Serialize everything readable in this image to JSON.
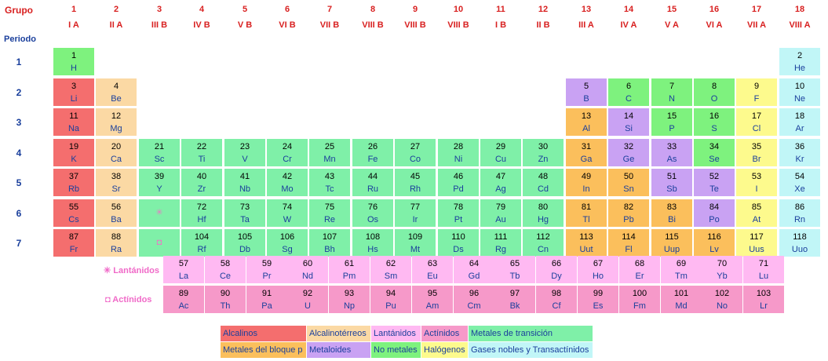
{
  "header": {
    "group_label": "Grupo",
    "period_label": "Periodo"
  },
  "groups": [
    {
      "num": "1",
      "roman": "I A"
    },
    {
      "num": "2",
      "roman": "II A"
    },
    {
      "num": "3",
      "roman": "III B"
    },
    {
      "num": "4",
      "roman": "IV B"
    },
    {
      "num": "5",
      "roman": "V B"
    },
    {
      "num": "6",
      "roman": "VI B"
    },
    {
      "num": "7",
      "roman": "VII B"
    },
    {
      "num": "8",
      "roman": "VIII B"
    },
    {
      "num": "9",
      "roman": "VIII B"
    },
    {
      "num": "10",
      "roman": "VIII B"
    },
    {
      "num": "11",
      "roman": "I B"
    },
    {
      "num": "12",
      "roman": "II B"
    },
    {
      "num": "13",
      "roman": "III A"
    },
    {
      "num": "14",
      "roman": "IV A"
    },
    {
      "num": "15",
      "roman": "V A"
    },
    {
      "num": "16",
      "roman": "VI A"
    },
    {
      "num": "17",
      "roman": "VII A"
    },
    {
      "num": "18",
      "roman": "VIII A"
    }
  ],
  "periods": [
    "1",
    "2",
    "3",
    "4",
    "5",
    "6",
    "7"
  ],
  "colors": {
    "alcalinos": "#f46e6e",
    "alcalinoterreos": "#fbd9a4",
    "lantanidos": "#ffb9f2",
    "actinidos": "#f699c9",
    "transicion": "#7ff0a8",
    "bloque_p": "#fbbf5c",
    "metaloides": "#c9a2f3",
    "no_metales": "#7ef27e",
    "halogenos": "#fdfa8d",
    "gases_nobles": "#c1f6f7"
  },
  "elements": [
    {
      "n": "1",
      "s": "H",
      "g": 1,
      "p": 1,
      "c": "no_metales"
    },
    {
      "n": "2",
      "s": "He",
      "g": 18,
      "p": 1,
      "c": "gases_nobles"
    },
    {
      "n": "3",
      "s": "Li",
      "g": 1,
      "p": 2,
      "c": "alcalinos"
    },
    {
      "n": "4",
      "s": "Be",
      "g": 2,
      "p": 2,
      "c": "alcalinoterreos"
    },
    {
      "n": "5",
      "s": "B",
      "g": 13,
      "p": 2,
      "c": "metaloides"
    },
    {
      "n": "6",
      "s": "C",
      "g": 14,
      "p": 2,
      "c": "no_metales"
    },
    {
      "n": "7",
      "s": "N",
      "g": 15,
      "p": 2,
      "c": "no_metales"
    },
    {
      "n": "8",
      "s": "O",
      "g": 16,
      "p": 2,
      "c": "no_metales"
    },
    {
      "n": "9",
      "s": "F",
      "g": 17,
      "p": 2,
      "c": "halogenos"
    },
    {
      "n": "10",
      "s": "Ne",
      "g": 18,
      "p": 2,
      "c": "gases_nobles"
    },
    {
      "n": "11",
      "s": "Na",
      "g": 1,
      "p": 3,
      "c": "alcalinos"
    },
    {
      "n": "12",
      "s": "Mg",
      "g": 2,
      "p": 3,
      "c": "alcalinoterreos"
    },
    {
      "n": "13",
      "s": "Al",
      "g": 13,
      "p": 3,
      "c": "bloque_p"
    },
    {
      "n": "14",
      "s": "Si",
      "g": 14,
      "p": 3,
      "c": "metaloides"
    },
    {
      "n": "15",
      "s": "P",
      "g": 15,
      "p": 3,
      "c": "no_metales"
    },
    {
      "n": "16",
      "s": "S",
      "g": 16,
      "p": 3,
      "c": "no_metales"
    },
    {
      "n": "17",
      "s": "Cl",
      "g": 17,
      "p": 3,
      "c": "halogenos"
    },
    {
      "n": "18",
      "s": "Ar",
      "g": 18,
      "p": 3,
      "c": "gases_nobles"
    },
    {
      "n": "19",
      "s": "K",
      "g": 1,
      "p": 4,
      "c": "alcalinos"
    },
    {
      "n": "20",
      "s": "Ca",
      "g": 2,
      "p": 4,
      "c": "alcalinoterreos"
    },
    {
      "n": "21",
      "s": "Sc",
      "g": 3,
      "p": 4,
      "c": "transicion"
    },
    {
      "n": "22",
      "s": "Ti",
      "g": 4,
      "p": 4,
      "c": "transicion"
    },
    {
      "n": "23",
      "s": "V",
      "g": 5,
      "p": 4,
      "c": "transicion"
    },
    {
      "n": "24",
      "s": "Cr",
      "g": 6,
      "p": 4,
      "c": "transicion"
    },
    {
      "n": "25",
      "s": "Mn",
      "g": 7,
      "p": 4,
      "c": "transicion"
    },
    {
      "n": "26",
      "s": "Fe",
      "g": 8,
      "p": 4,
      "c": "transicion"
    },
    {
      "n": "27",
      "s": "Co",
      "g": 9,
      "p": 4,
      "c": "transicion"
    },
    {
      "n": "28",
      "s": "Ni",
      "g": 10,
      "p": 4,
      "c": "transicion"
    },
    {
      "n": "29",
      "s": "Cu",
      "g": 11,
      "p": 4,
      "c": "transicion"
    },
    {
      "n": "30",
      "s": "Zn",
      "g": 12,
      "p": 4,
      "c": "transicion"
    },
    {
      "n": "31",
      "s": "Ga",
      "g": 13,
      "p": 4,
      "c": "bloque_p"
    },
    {
      "n": "32",
      "s": "Ge",
      "g": 14,
      "p": 4,
      "c": "metaloides"
    },
    {
      "n": "33",
      "s": "As",
      "g": 15,
      "p": 4,
      "c": "metaloides"
    },
    {
      "n": "34",
      "s": "Se",
      "g": 16,
      "p": 4,
      "c": "no_metales"
    },
    {
      "n": "35",
      "s": "Br",
      "g": 17,
      "p": 4,
      "c": "halogenos"
    },
    {
      "n": "36",
      "s": "Kr",
      "g": 18,
      "p": 4,
      "c": "gases_nobles"
    },
    {
      "n": "37",
      "s": "Rb",
      "g": 1,
      "p": 5,
      "c": "alcalinos"
    },
    {
      "n": "38",
      "s": "Sr",
      "g": 2,
      "p": 5,
      "c": "alcalinoterreos"
    },
    {
      "n": "39",
      "s": "Y",
      "g": 3,
      "p": 5,
      "c": "transicion"
    },
    {
      "n": "40",
      "s": "Zr",
      "g": 4,
      "p": 5,
      "c": "transicion"
    },
    {
      "n": "41",
      "s": "Nb",
      "g": 5,
      "p": 5,
      "c": "transicion"
    },
    {
      "n": "42",
      "s": "Mo",
      "g": 6,
      "p": 5,
      "c": "transicion"
    },
    {
      "n": "43",
      "s": "Tc",
      "g": 7,
      "p": 5,
      "c": "transicion"
    },
    {
      "n": "44",
      "s": "Ru",
      "g": 8,
      "p": 5,
      "c": "transicion"
    },
    {
      "n": "45",
      "s": "Rh",
      "g": 9,
      "p": 5,
      "c": "transicion"
    },
    {
      "n": "46",
      "s": "Pd",
      "g": 10,
      "p": 5,
      "c": "transicion"
    },
    {
      "n": "47",
      "s": "Ag",
      "g": 11,
      "p": 5,
      "c": "transicion"
    },
    {
      "n": "48",
      "s": "Cd",
      "g": 12,
      "p": 5,
      "c": "transicion"
    },
    {
      "n": "49",
      "s": "In",
      "g": 13,
      "p": 5,
      "c": "bloque_p"
    },
    {
      "n": "50",
      "s": "Sn",
      "g": 14,
      "p": 5,
      "c": "bloque_p"
    },
    {
      "n": "51",
      "s": "Sb",
      "g": 15,
      "p": 5,
      "c": "metaloides"
    },
    {
      "n": "52",
      "s": "Te",
      "g": 16,
      "p": 5,
      "c": "metaloides"
    },
    {
      "n": "53",
      "s": "I",
      "g": 17,
      "p": 5,
      "c": "halogenos"
    },
    {
      "n": "54",
      "s": "Xe",
      "g": 18,
      "p": 5,
      "c": "gases_nobles"
    },
    {
      "n": "55",
      "s": "Cs",
      "g": 1,
      "p": 6,
      "c": "alcalinos"
    },
    {
      "n": "56",
      "s": "Ba",
      "g": 2,
      "p": 6,
      "c": "alcalinoterreos"
    },
    {
      "n": "72",
      "s": "Hf",
      "g": 4,
      "p": 6,
      "c": "transicion"
    },
    {
      "n": "73",
      "s": "Ta",
      "g": 5,
      "p": 6,
      "c": "transicion"
    },
    {
      "n": "74",
      "s": "W",
      "g": 6,
      "p": 6,
      "c": "transicion"
    },
    {
      "n": "75",
      "s": "Re",
      "g": 7,
      "p": 6,
      "c": "transicion"
    },
    {
      "n": "76",
      "s": "Os",
      "g": 8,
      "p": 6,
      "c": "transicion"
    },
    {
      "n": "77",
      "s": "Ir",
      "g": 9,
      "p": 6,
      "c": "transicion"
    },
    {
      "n": "78",
      "s": "Pt",
      "g": 10,
      "p": 6,
      "c": "transicion"
    },
    {
      "n": "79",
      "s": "Au",
      "g": 11,
      "p": 6,
      "c": "transicion"
    },
    {
      "n": "80",
      "s": "Hg",
      "g": 12,
      "p": 6,
      "c": "transicion"
    },
    {
      "n": "81",
      "s": "Tl",
      "g": 13,
      "p": 6,
      "c": "bloque_p"
    },
    {
      "n": "82",
      "s": "Pb",
      "g": 14,
      "p": 6,
      "c": "bloque_p"
    },
    {
      "n": "83",
      "s": "Bi",
      "g": 15,
      "p": 6,
      "c": "bloque_p"
    },
    {
      "n": "84",
      "s": "Po",
      "g": 16,
      "p": 6,
      "c": "metaloides"
    },
    {
      "n": "85",
      "s": "At",
      "g": 17,
      "p": 6,
      "c": "halogenos"
    },
    {
      "n": "86",
      "s": "Rn",
      "g": 18,
      "p": 6,
      "c": "gases_nobles"
    },
    {
      "n": "87",
      "s": "Fr",
      "g": 1,
      "p": 7,
      "c": "alcalinos"
    },
    {
      "n": "88",
      "s": "Ra",
      "g": 2,
      "p": 7,
      "c": "alcalinoterreos"
    },
    {
      "n": "104",
      "s": "Rf",
      "g": 4,
      "p": 7,
      "c": "transicion"
    },
    {
      "n": "105",
      "s": "Db",
      "g": 5,
      "p": 7,
      "c": "transicion"
    },
    {
      "n": "106",
      "s": "Sg",
      "g": 6,
      "p": 7,
      "c": "transicion"
    },
    {
      "n": "107",
      "s": "Bh",
      "g": 7,
      "p": 7,
      "c": "transicion"
    },
    {
      "n": "108",
      "s": "Hs",
      "g": 8,
      "p": 7,
      "c": "transicion"
    },
    {
      "n": "109",
      "s": "Mt",
      "g": 9,
      "p": 7,
      "c": "transicion"
    },
    {
      "n": "110",
      "s": "Ds",
      "g": 10,
      "p": 7,
      "c": "transicion"
    },
    {
      "n": "111",
      "s": "Rg",
      "g": 11,
      "p": 7,
      "c": "transicion"
    },
    {
      "n": "112",
      "s": "Cn",
      "g": 12,
      "p": 7,
      "c": "transicion"
    },
    {
      "n": "113",
      "s": "Uut",
      "g": 13,
      "p": 7,
      "c": "bloque_p"
    },
    {
      "n": "114",
      "s": "Fl",
      "g": 14,
      "p": 7,
      "c": "bloque_p"
    },
    {
      "n": "115",
      "s": "Uup",
      "g": 15,
      "p": 7,
      "c": "bloque_p"
    },
    {
      "n": "116",
      "s": "Lv",
      "g": 16,
      "p": 7,
      "c": "bloque_p"
    },
    {
      "n": "117",
      "s": "Uus",
      "g": 17,
      "p": 7,
      "c": "halogenos"
    },
    {
      "n": "118",
      "s": "Uuo",
      "g": 18,
      "p": 7,
      "c": "gases_nobles"
    }
  ],
  "placeholders": [
    {
      "mark": "✳",
      "g": 3,
      "p": 6,
      "c": "transicion"
    },
    {
      "mark": "◘",
      "g": 3,
      "p": 7,
      "c": "transicion"
    }
  ],
  "series": [
    {
      "label": "✳ Lantánidos",
      "c": "lantanidos",
      "elements": [
        {
          "n": "57",
          "s": "La"
        },
        {
          "n": "58",
          "s": "Ce"
        },
        {
          "n": "59",
          "s": "Pr"
        },
        {
          "n": "60",
          "s": "Nd"
        },
        {
          "n": "61",
          "s": "Pm"
        },
        {
          "n": "62",
          "s": "Sm"
        },
        {
          "n": "63",
          "s": "Eu"
        },
        {
          "n": "64",
          "s": "Gd"
        },
        {
          "n": "65",
          "s": "Tb"
        },
        {
          "n": "66",
          "s": "Dy"
        },
        {
          "n": "67",
          "s": "Ho"
        },
        {
          "n": "68",
          "s": "Er"
        },
        {
          "n": "69",
          "s": "Tm"
        },
        {
          "n": "70",
          "s": "Yb"
        },
        {
          "n": "71",
          "s": "Lu"
        }
      ]
    },
    {
      "label": "◘ Actínidos",
      "c": "actinidos",
      "elements": [
        {
          "n": "89",
          "s": "Ac"
        },
        {
          "n": "90",
          "s": "Th"
        },
        {
          "n": "91",
          "s": "Pa"
        },
        {
          "n": "92",
          "s": "U"
        },
        {
          "n": "93",
          "s": "Np"
        },
        {
          "n": "94",
          "s": "Pu"
        },
        {
          "n": "95",
          "s": "Am"
        },
        {
          "n": "96",
          "s": "Cm"
        },
        {
          "n": "97",
          "s": "Bk"
        },
        {
          "n": "98",
          "s": "Cf"
        },
        {
          "n": "99",
          "s": "Es"
        },
        {
          "n": "100",
          "s": "Fm"
        },
        {
          "n": "101",
          "s": "Md"
        },
        {
          "n": "102",
          "s": "No"
        },
        {
          "n": "103",
          "s": "Lr"
        }
      ]
    }
  ],
  "legend": [
    [
      {
        "label": "Alcalinos",
        "c": "alcalinos"
      },
      {
        "label": "Alcalinotérreos",
        "c": "alcalinoterreos"
      },
      {
        "label": "Lantánidos",
        "c": "lantanidos"
      },
      {
        "label": "Actínidos",
        "c": "actinidos"
      },
      {
        "label": "Metales de transición",
        "c": "transicion"
      }
    ],
    [
      {
        "label": "Metales del bloque p",
        "c": "bloque_p"
      },
      {
        "label": "Metaloides",
        "c": "metaloides"
      },
      {
        "label": "No metales",
        "c": "no_metales"
      },
      {
        "label": "Halógenos",
        "c": "halogenos"
      },
      {
        "label": "Gases nobles y Transactínidos",
        "c": "gases_nobles"
      }
    ]
  ]
}
